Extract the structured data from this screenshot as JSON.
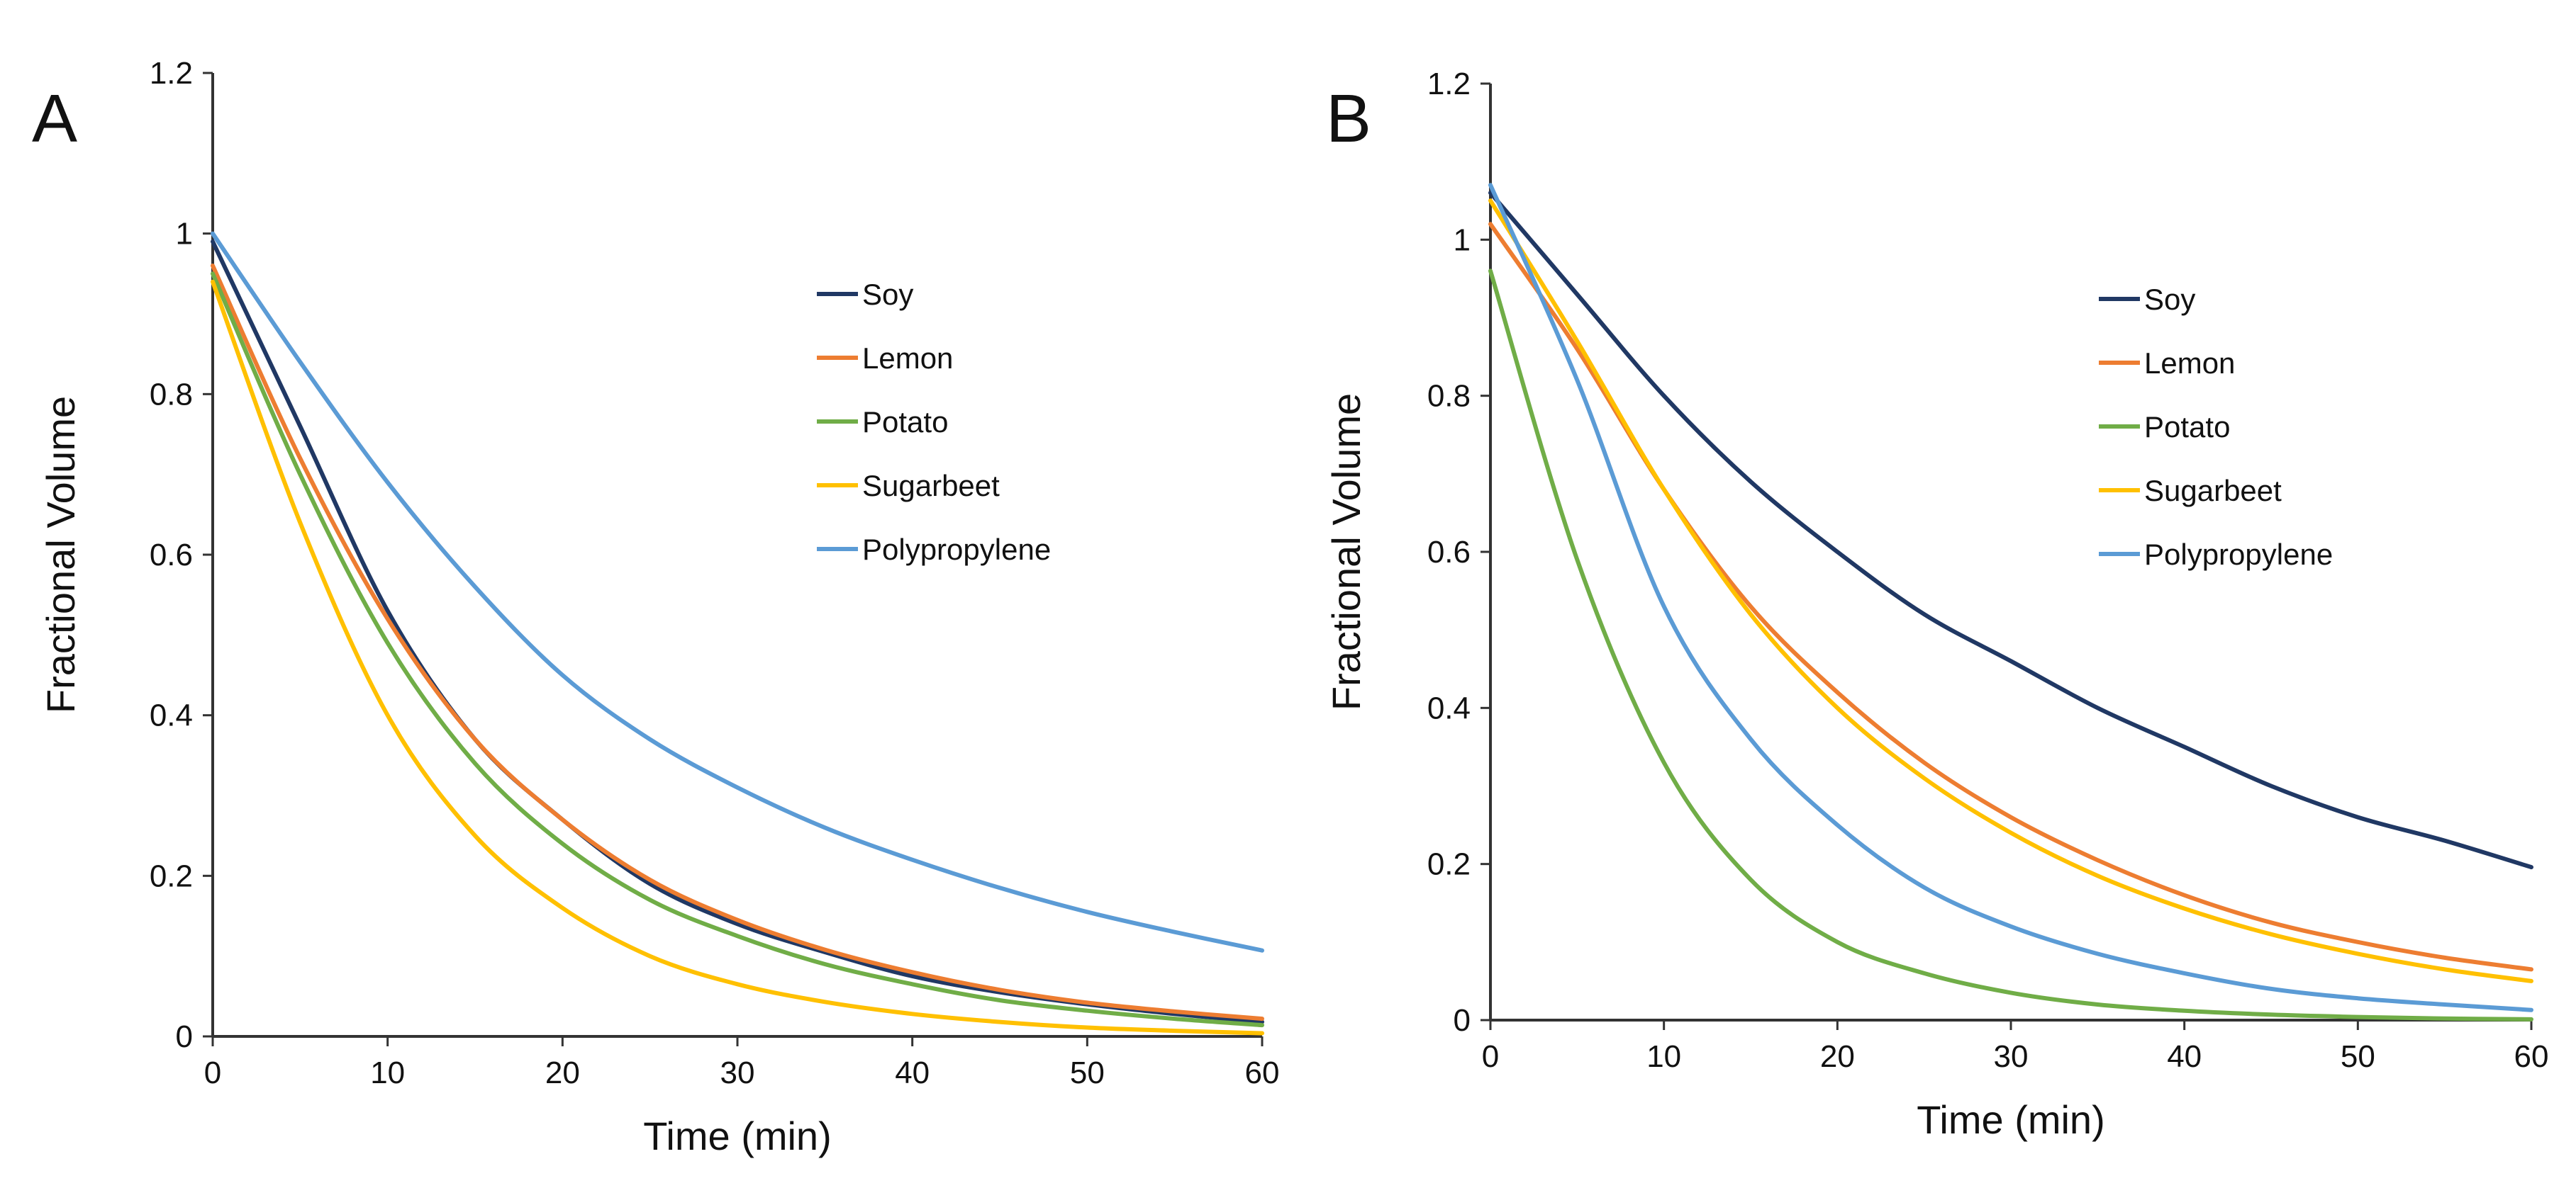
{
  "figure": {
    "panels": [
      "A",
      "B"
    ]
  },
  "chart_data": [
    {
      "panel": "A",
      "type": "line",
      "title": "",
      "xlabel": "Time (min)",
      "ylabel": "Fractional Volume",
      "xlim": [
        0,
        60
      ],
      "ylim": [
        0,
        1.2
      ],
      "xticks": [
        0,
        10,
        20,
        30,
        40,
        50,
        60
      ],
      "yticks": [
        0,
        0.2,
        0.4,
        0.6,
        0.8,
        1,
        1.2
      ],
      "ytick_labels": [
        "0",
        "0.2",
        "0.4",
        "0.6",
        "0.8",
        "1",
        "1.2"
      ],
      "legend_position": "upper-right",
      "x": [
        0,
        5,
        10,
        15,
        20,
        25,
        30,
        35,
        40,
        45,
        50,
        55,
        60
      ],
      "series": [
        {
          "name": "Soy",
          "color": "#203864",
          "values": [
            0.99,
            0.76,
            0.53,
            0.37,
            0.27,
            0.19,
            0.14,
            0.105,
            0.075,
            0.055,
            0.04,
            0.028,
            0.018
          ]
        },
        {
          "name": "Lemon",
          "color": "#ED7D31",
          "values": [
            0.96,
            0.72,
            0.52,
            0.37,
            0.27,
            0.195,
            0.145,
            0.108,
            0.08,
            0.058,
            0.042,
            0.031,
            0.022
          ]
        },
        {
          "name": "Potato",
          "color": "#70AD47",
          "values": [
            0.95,
            0.7,
            0.49,
            0.34,
            0.24,
            0.17,
            0.125,
            0.09,
            0.065,
            0.045,
            0.032,
            0.022,
            0.014
          ]
        },
        {
          "name": "Sugarbeet",
          "color": "#FFC000",
          "values": [
            0.94,
            0.64,
            0.4,
            0.25,
            0.16,
            0.1,
            0.065,
            0.043,
            0.028,
            0.018,
            0.011,
            0.007,
            0.004
          ]
        },
        {
          "name": "Polypropylene",
          "color": "#5B9BD5",
          "values": [
            1.0,
            0.84,
            0.69,
            0.56,
            0.45,
            0.37,
            0.31,
            0.26,
            0.22,
            0.185,
            0.155,
            0.13,
            0.107
          ]
        }
      ]
    },
    {
      "panel": "B",
      "type": "line",
      "title": "",
      "xlabel": "Time (min)",
      "ylabel": "Fractional Volume",
      "xlim": [
        0,
        60
      ],
      "ylim": [
        0,
        1.2
      ],
      "xticks": [
        0,
        10,
        20,
        30,
        40,
        50,
        60
      ],
      "yticks": [
        0,
        0.2,
        0.4,
        0.6,
        0.8,
        1,
        1.2
      ],
      "ytick_labels": [
        "0",
        "0.2",
        "0.4",
        "0.6",
        "0.8",
        "1",
        "1.2"
      ],
      "legend_position": "upper-right",
      "x": [
        0,
        5,
        10,
        15,
        20,
        25,
        30,
        35,
        40,
        45,
        50,
        55,
        60
      ],
      "series": [
        {
          "name": "Soy",
          "color": "#203864",
          "values": [
            1.06,
            0.93,
            0.8,
            0.69,
            0.6,
            0.52,
            0.46,
            0.4,
            0.35,
            0.3,
            0.26,
            0.23,
            0.196
          ]
        },
        {
          "name": "Lemon",
          "color": "#ED7D31",
          "values": [
            1.02,
            0.86,
            0.68,
            0.53,
            0.42,
            0.33,
            0.26,
            0.205,
            0.16,
            0.125,
            0.1,
            0.08,
            0.065
          ]
        },
        {
          "name": "Potato",
          "color": "#70AD47",
          "values": [
            0.96,
            0.59,
            0.33,
            0.18,
            0.1,
            0.06,
            0.035,
            0.02,
            0.012,
            0.007,
            0.004,
            0.002,
            0.001
          ]
        },
        {
          "name": "Sugarbeet",
          "color": "#FFC000",
          "values": [
            1.05,
            0.87,
            0.68,
            0.52,
            0.4,
            0.31,
            0.24,
            0.185,
            0.143,
            0.11,
            0.085,
            0.065,
            0.05
          ]
        },
        {
          "name": "Polypropylene",
          "color": "#5B9BD5",
          "values": [
            1.07,
            0.82,
            0.53,
            0.36,
            0.25,
            0.17,
            0.12,
            0.085,
            0.06,
            0.04,
            0.028,
            0.02,
            0.013
          ]
        }
      ]
    }
  ]
}
